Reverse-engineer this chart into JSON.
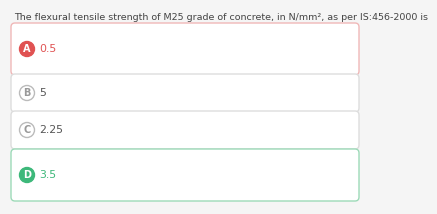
{
  "question": "The flexural tensile strength of M25 grade of concrete, in N/mm², as per IS:456-2000 is",
  "options": [
    {
      "label": "A",
      "text": "0.5",
      "selected": true,
      "correct": false
    },
    {
      "label": "B",
      "text": "5",
      "selected": false,
      "correct": false
    },
    {
      "label": "C",
      "text": "2.25",
      "selected": false,
      "correct": false
    },
    {
      "label": "D",
      "text": "3.5",
      "selected": false,
      "correct": true
    }
  ],
  "bg_color": "#f5f5f5",
  "question_color": "#444444",
  "question_fontsize": 6.8,
  "option_text_fontsize": 7.8,
  "label_fontsize": 7.0,
  "selected_wrong_circle_color": "#e05252",
  "selected_wrong_text_color": "#e05252",
  "selected_wrong_box_edge": "#f0b8b8",
  "selected_wrong_box_face": "#ffffff",
  "correct_circle_color": "#3db87a",
  "correct_text_color": "#3db87a",
  "correct_box_edge": "#9ddab8",
  "correct_box_face": "#ffffff",
  "normal_circle_edge": "#bbbbbb",
  "normal_circle_face": "#ffffff",
  "normal_text_color": "#555555",
  "normal_box_edge": "#dddddd",
  "normal_box_face": "#ffffff"
}
